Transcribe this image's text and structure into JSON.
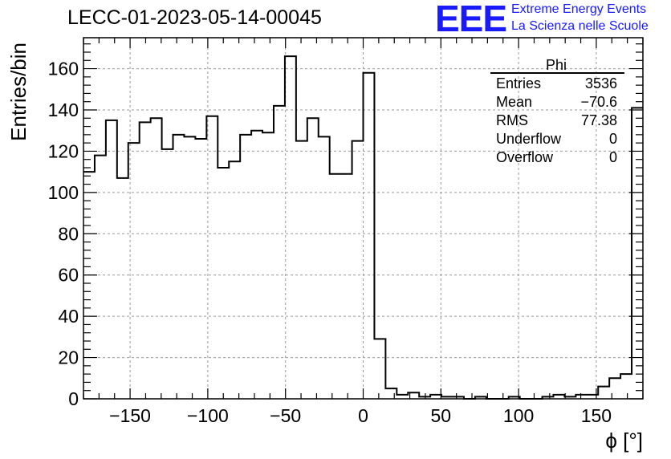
{
  "header": {
    "title": "LECC-01-2023-05-14-00045",
    "logo_text": "EEE",
    "logo_line1": "Extreme Energy Events",
    "logo_line2": "La Scienza nelle Scuole"
  },
  "colors": {
    "logo": "#1a1aff",
    "line": "#000000",
    "grid": "#9a9a9a"
  },
  "stats": {
    "name": "Phi",
    "rows": [
      {
        "label": "Entries",
        "value": "3536"
      },
      {
        "label": "Mean",
        "value": "−70.6"
      },
      {
        "label": "RMS",
        "value": "77.38"
      },
      {
        "label": "Underflow",
        "value": "0"
      },
      {
        "label": "Overflow",
        "value": "0"
      }
    ]
  },
  "chart_data": {
    "type": "histogram",
    "title": "LECC-01-2023-05-14-00045",
    "xlabel": "ϕ [°]",
    "ylabel": "Entries/bin",
    "xlim": [
      -180,
      180
    ],
    "ylim": [
      0,
      175
    ],
    "bin_width": 7.2,
    "grid": true,
    "xticks": [
      -150,
      -100,
      -50,
      0,
      50,
      100,
      150
    ],
    "xtick_labels": [
      "−150",
      "−100",
      "−50",
      "0",
      "50",
      "100",
      "150"
    ],
    "yticks": [
      0,
      20,
      40,
      60,
      80,
      100,
      120,
      140,
      160
    ],
    "yticklabels": [
      "0",
      "20",
      "40",
      "60",
      "80",
      "100",
      "120",
      "140",
      "160"
    ],
    "values": [
      110,
      118,
      135,
      107,
      124,
      134,
      136,
      121,
      128,
      127,
      126,
      137,
      112,
      115,
      128,
      130,
      129,
      142,
      166,
      125,
      136,
      127,
      109,
      109,
      125,
      158,
      29,
      5,
      2,
      3,
      1,
      2,
      1,
      1,
      0,
      1,
      0,
      0,
      1,
      0,
      0,
      1,
      2,
      1,
      2,
      2,
      6,
      10,
      12,
      141
    ]
  }
}
